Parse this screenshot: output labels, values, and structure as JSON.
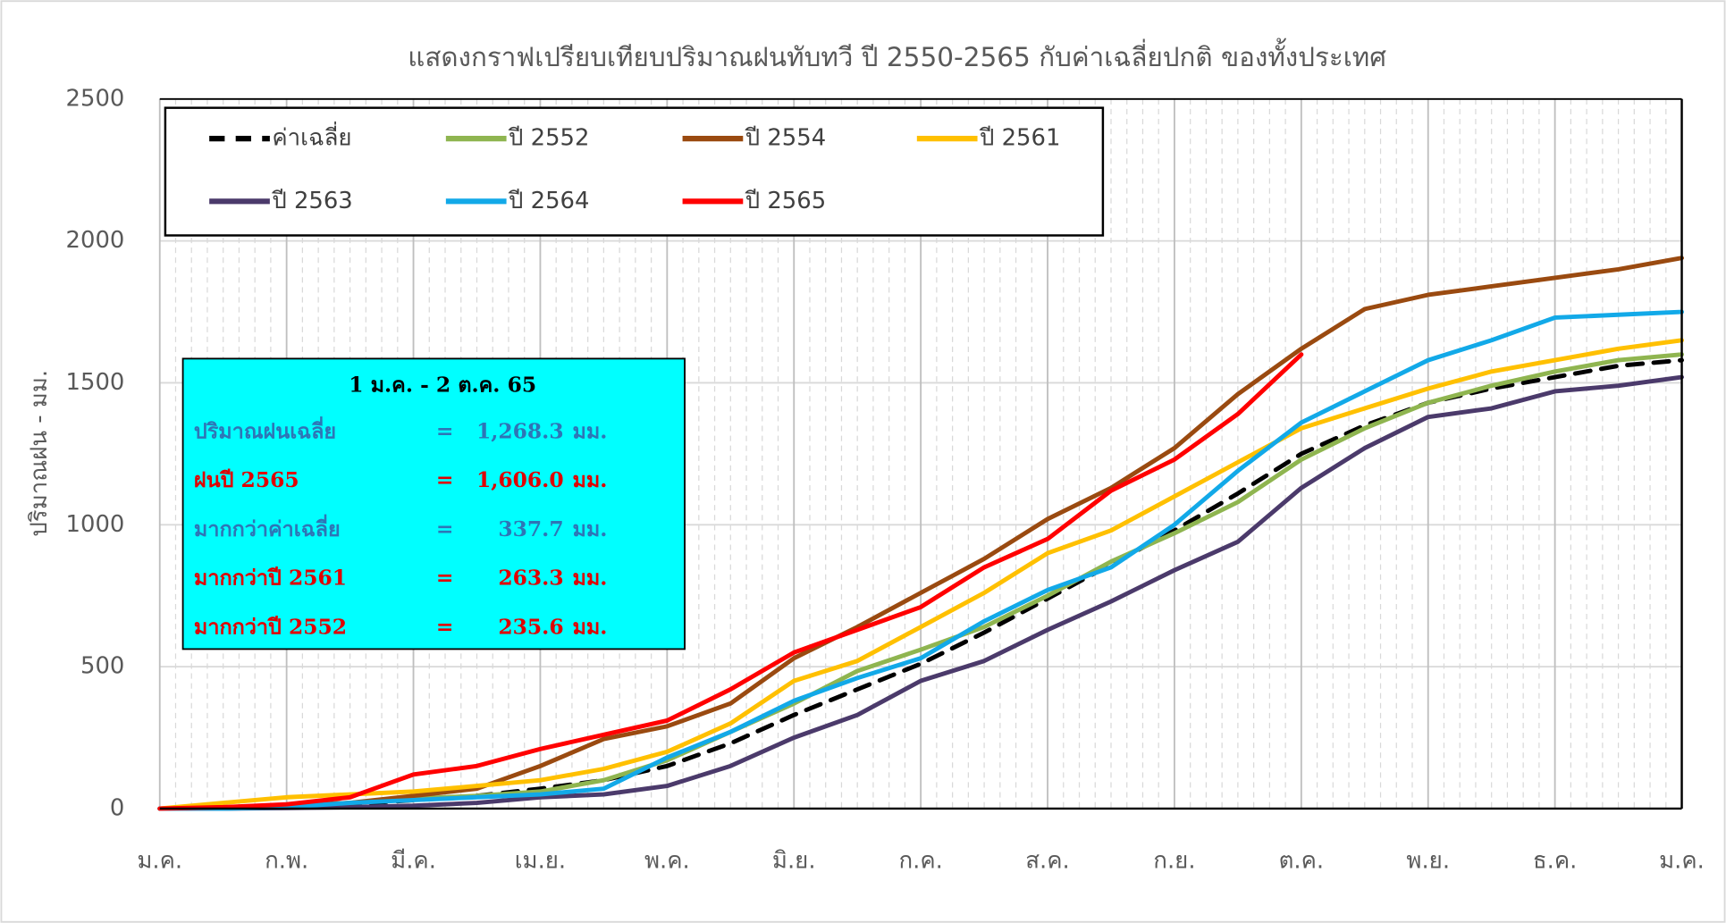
{
  "chart_data": {
    "type": "line",
    "title": "แสดงกราฟเปรียบเทียบปริมาณฝนทับทวี ปี 2550-2565 กับค่าเฉลี่ยปกติ ของทั้งประเทศ",
    "y_label": "ปริมาณฝน - มม.",
    "categories": [
      "ม.ค.",
      null,
      "ก.พ.",
      null,
      "มี.ค.",
      null,
      "เม.ย.",
      null,
      "พ.ค.",
      null,
      "มิ.ย.",
      null,
      "ก.ค.",
      null,
      "ส.ค.",
      null,
      "ก.ย.",
      null,
      "ต.ค.",
      null,
      "พ.ย.",
      null,
      "ธ.ค.",
      null,
      "ม.ค."
    ],
    "ylim": [
      0,
      2500
    ],
    "yticks": [
      0,
      500,
      1000,
      1500,
      2000,
      2500
    ],
    "grid": true,
    "legend": "top-left",
    "series": [
      {
        "name": "ค่าเฉลี่ย",
        "color": "#000000",
        "dash": true,
        "values": [
          0,
          2,
          5,
          15,
          30,
          45,
          70,
          100,
          150,
          230,
          330,
          420,
          510,
          620,
          740,
          860,
          980,
          1110,
          1250,
          1350,
          1430,
          1480,
          1520,
          1560,
          1580
        ]
      },
      {
        "name": "ปี 2552",
        "color": "#8fb550",
        "values": [
          0,
          2,
          10,
          20,
          35,
          45,
          60,
          100,
          170,
          270,
          370,
          485,
          560,
          640,
          750,
          870,
          970,
          1080,
          1230,
          1340,
          1430,
          1490,
          1540,
          1580,
          1600
        ]
      },
      {
        "name": "ปี 2554",
        "color": "#9a4a10",
        "values": [
          0,
          3,
          10,
          20,
          45,
          70,
          150,
          245,
          290,
          370,
          530,
          640,
          760,
          880,
          1020,
          1130,
          1270,
          1460,
          1620,
          1760,
          1810,
          1840,
          1870,
          1900,
          1940
        ]
      },
      {
        "name": "ปี 2561",
        "color": "#ffc000",
        "values": [
          0,
          20,
          40,
          50,
          60,
          80,
          100,
          140,
          200,
          300,
          450,
          520,
          640,
          760,
          900,
          980,
          1100,
          1220,
          1340,
          1410,
          1480,
          1540,
          1580,
          1620,
          1650
        ]
      },
      {
        "name": "ปี 2563",
        "color": "#4b3a6b",
        "values": [
          0,
          0,
          2,
          5,
          10,
          20,
          40,
          50,
          80,
          150,
          250,
          330,
          450,
          520,
          630,
          730,
          840,
          940,
          1130,
          1270,
          1380,
          1410,
          1470,
          1490,
          1520
        ]
      },
      {
        "name": "ปี 2564",
        "color": "#12a9e8",
        "values": [
          0,
          0,
          5,
          20,
          30,
          40,
          50,
          70,
          180,
          270,
          380,
          460,
          530,
          660,
          770,
          850,
          1000,
          1190,
          1360,
          1470,
          1580,
          1650,
          1730,
          1740,
          1750
        ]
      },
      {
        "name": "ปี 2565",
        "color": "#ff0000",
        "values": [
          0,
          5,
          15,
          40,
          120,
          150,
          210,
          260,
          310,
          420,
          550,
          630,
          710,
          850,
          950,
          1120,
          1230,
          1390,
          1600,
          null,
          null,
          null,
          null,
          null,
          null
        ]
      }
    ],
    "summary_box": {
      "title": "1 ม.ค. - 2 ต.ค. 65",
      "color": "#00ffff",
      "rows": [
        {
          "label": "ปริมาณฝนเฉลี่ย",
          "eq": "=",
          "value": "1,268.3",
          "unit": "มม.",
          "color": "#2e75b6"
        },
        {
          "label": "ฝนปี 2565",
          "eq": "=",
          "value": "1,606.0",
          "unit": "มม.",
          "color": "#e00000"
        },
        {
          "label": "มากกว่าค่าเฉลี่ย",
          "eq": "=",
          "value": "337.7",
          "unit": "มม.",
          "color": "#2e75b6"
        },
        {
          "label": "มากกว่าปี 2561",
          "eq": "=",
          "value": "263.3",
          "unit": "มม.",
          "color": "#e00000"
        },
        {
          "label": "มากกว่าปี 2552",
          "eq": "=",
          "value": "235.6",
          "unit": "มม.",
          "color": "#e00000"
        }
      ]
    }
  }
}
